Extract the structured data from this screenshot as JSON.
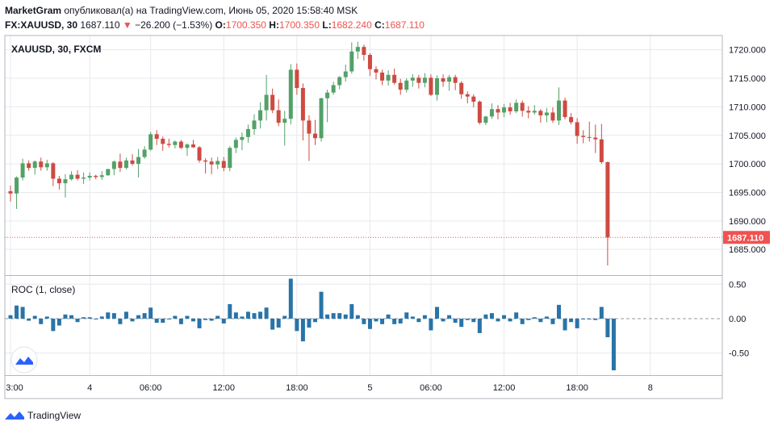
{
  "header": {
    "author": "MarketGram",
    "published_text": "опубликовал(а) на TradingView.com, Июнь 05, 2020 15:58:40 MSK",
    "symbol": "FX:XAUUSD, 30",
    "last": "1687.110",
    "arrow": "▼",
    "change": "−26.200 (−1.53%)",
    "o_label": "O:",
    "o_value": "1700.350",
    "h_label": "H:",
    "h_value": "1700.350",
    "l_label": "L:",
    "l_value": "1682.240",
    "c_label": "C:",
    "c_value": "1687.110"
  },
  "price_pane_label": "XAUUSD, 30, FXCM",
  "roc_pane_label": "ROC (1, close)",
  "last_price_label": "1687.110",
  "footer": {
    "brand": "TradingView"
  },
  "colors": {
    "up": "#53a169",
    "down": "#ce4a41",
    "roc": "#2874a8",
    "last_line": "#ef5350",
    "grid": "#e6e9ee"
  },
  "chart_data": {
    "type": "candlestick",
    "interval_minutes": 30,
    "price_axis": {
      "ticks": [
        1720,
        1715,
        1710,
        1705,
        1700,
        1695,
        1690,
        1685
      ],
      "tick_labels": [
        "1720.000",
        "1715.000",
        "1710.000",
        "1705.000",
        "1700.000",
        "1695.000",
        "1690.000",
        "1685.000"
      ],
      "range": [
        1680.5,
        1722.5
      ]
    },
    "roc_axis": {
      "ticks": [
        0.5,
        0,
        -0.5
      ],
      "tick_labels": [
        "0.50",
        "0.00",
        "-0.50"
      ],
      "range": [
        -0.82,
        0.62
      ]
    },
    "time_axis": {
      "ticks": [
        "3:00",
        "4",
        "06:00",
        "12:00",
        "18:00",
        "5",
        "06:00",
        "12:00",
        "18:00",
        "8"
      ],
      "tick_index": [
        0,
        13,
        23,
        35,
        47,
        59,
        69,
        81,
        93,
        105
      ]
    },
    "last_price": 1687.11,
    "candles": [
      [
        1695.2,
        1696.2,
        1693.4,
        1694.8
      ],
      [
        1694.8,
        1697.8,
        1692.1,
        1697.6
      ],
      [
        1697.6,
        1700.9,
        1697.1,
        1700.1
      ],
      [
        1700.1,
        1700.6,
        1698.8,
        1699.3
      ],
      [
        1699.3,
        1700.6,
        1698.1,
        1700.4
      ],
      [
        1700.4,
        1701.1,
        1698.8,
        1699.4
      ],
      [
        1699.4,
        1700.7,
        1698.8,
        1700.1
      ],
      [
        1700.1,
        1700.3,
        1696.1,
        1697.4
      ],
      [
        1697.4,
        1697.9,
        1695.5,
        1696.6
      ],
      [
        1696.6,
        1698.2,
        1694.1,
        1697.3
      ],
      [
        1697.3,
        1698.7,
        1697.1,
        1698.1
      ],
      [
        1698.1,
        1698.9,
        1697.1,
        1697.4
      ],
      [
        1697.4,
        1698.5,
        1696.5,
        1697.6
      ],
      [
        1697.6,
        1698.5,
        1697.1,
        1697.9
      ],
      [
        1697.9,
        1698.1,
        1697.3,
        1697.7
      ],
      [
        1697.7,
        1698.7,
        1697.2,
        1698.0
      ],
      [
        1698.0,
        1699.1,
        1697.9,
        1699.1
      ],
      [
        1699.1,
        1700.6,
        1698.0,
        1700.4
      ],
      [
        1700.4,
        1701.8,
        1698.6,
        1699.3
      ],
      [
        1699.3,
        1701.1,
        1699.0,
        1700.6
      ],
      [
        1700.6,
        1701.7,
        1699.7,
        1700.0
      ],
      [
        1700.0,
        1702.6,
        1697.6,
        1701.2
      ],
      [
        1701.2,
        1703.1,
        1700.9,
        1702.5
      ],
      [
        1702.5,
        1705.6,
        1702.3,
        1705.2
      ],
      [
        1705.2,
        1705.9,
        1703.3,
        1704.4
      ],
      [
        1704.4,
        1704.8,
        1702.3,
        1703.5
      ],
      [
        1703.5,
        1704.4,
        1702.9,
        1703.3
      ],
      [
        1703.3,
        1704.1,
        1702.7,
        1703.9
      ],
      [
        1703.9,
        1704.2,
        1702.6,
        1702.8
      ],
      [
        1702.8,
        1703.6,
        1701.4,
        1703.4
      ],
      [
        1703.4,
        1704.2,
        1702.8,
        1702.9
      ],
      [
        1702.9,
        1703.1,
        1700.2,
        1700.6
      ],
      [
        1700.6,
        1701.0,
        1698.3,
        1700.4
      ],
      [
        1700.4,
        1701.1,
        1698.2,
        1699.9
      ],
      [
        1699.9,
        1701.2,
        1699.1,
        1700.5
      ],
      [
        1700.5,
        1701.2,
        1698.7,
        1699.3
      ],
      [
        1699.3,
        1703.1,
        1698.7,
        1702.8
      ],
      [
        1702.8,
        1704.6,
        1701.9,
        1704.2
      ],
      [
        1704.2,
        1705.5,
        1702.4,
        1704.7
      ],
      [
        1704.7,
        1706.9,
        1703.7,
        1706.1
      ],
      [
        1706.1,
        1708.7,
        1705.1,
        1707.6
      ],
      [
        1707.6,
        1710.8,
        1706.2,
        1709.4
      ],
      [
        1709.4,
        1715.6,
        1707.6,
        1712.1
      ],
      [
        1712.1,
        1713.2,
        1708.9,
        1709.4
      ],
      [
        1709.4,
        1711.3,
        1706.6,
        1707.2
      ],
      [
        1707.2,
        1709.3,
        1703.2,
        1707.9
      ],
      [
        1707.9,
        1717.5,
        1706.9,
        1716.5
      ],
      [
        1716.5,
        1717.6,
        1712.1,
        1713.3
      ],
      [
        1713.3,
        1714.1,
        1704.1,
        1707.6
      ],
      [
        1707.6,
        1708.5,
        1700.5,
        1705.3
      ],
      [
        1705.3,
        1707.7,
        1703.3,
        1704.5
      ],
      [
        1704.5,
        1711.6,
        1703.9,
        1711.5
      ],
      [
        1711.5,
        1713.0,
        1707.3,
        1712.5
      ],
      [
        1712.5,
        1714.4,
        1712.1,
        1713.8
      ],
      [
        1713.8,
        1715.4,
        1713.1,
        1715.2
      ],
      [
        1715.2,
        1717.4,
        1714.4,
        1716.2
      ],
      [
        1716.2,
        1721.3,
        1715.8,
        1719.7
      ],
      [
        1719.7,
        1721.4,
        1718.4,
        1720.5
      ],
      [
        1720.5,
        1720.9,
        1718.1,
        1719.1
      ],
      [
        1719.1,
        1719.4,
        1715.4,
        1716.6
      ],
      [
        1716.6,
        1717.1,
        1714.8,
        1716.0
      ],
      [
        1716.0,
        1716.5,
        1713.8,
        1714.6
      ],
      [
        1714.6,
        1716.4,
        1713.7,
        1715.6
      ],
      [
        1715.6,
        1716.7,
        1713.9,
        1714.2
      ],
      [
        1714.2,
        1714.9,
        1712.1,
        1713.0
      ],
      [
        1713.0,
        1715.0,
        1712.5,
        1714.6
      ],
      [
        1714.6,
        1715.7,
        1713.5,
        1715.1
      ],
      [
        1715.1,
        1715.6,
        1713.2,
        1714.2
      ],
      [
        1714.2,
        1715.9,
        1713.4,
        1715.1
      ],
      [
        1715.1,
        1715.7,
        1711.9,
        1712.1
      ],
      [
        1712.1,
        1715.5,
        1711.1,
        1715.0
      ],
      [
        1715.0,
        1715.7,
        1713.5,
        1714.4
      ],
      [
        1714.4,
        1715.6,
        1712.8,
        1715.2
      ],
      [
        1715.2,
        1715.6,
        1712.9,
        1714.2
      ],
      [
        1714.2,
        1714.5,
        1711.4,
        1712.2
      ],
      [
        1712.2,
        1712.7,
        1710.6,
        1711.8
      ],
      [
        1711.8,
        1712.2,
        1709.9,
        1710.9
      ],
      [
        1710.9,
        1711.1,
        1706.9,
        1707.2
      ],
      [
        1707.2,
        1708.4,
        1706.8,
        1708.3
      ],
      [
        1708.3,
        1710.6,
        1707.9,
        1709.6
      ],
      [
        1709.6,
        1710.3,
        1707.8,
        1709.0
      ],
      [
        1709.0,
        1710.5,
        1708.2,
        1709.9
      ],
      [
        1709.9,
        1710.7,
        1708.6,
        1709.2
      ],
      [
        1709.2,
        1711.3,
        1708.9,
        1710.7
      ],
      [
        1710.7,
        1711.1,
        1708.3,
        1709.3
      ],
      [
        1709.3,
        1710.1,
        1708.0,
        1709.0
      ],
      [
        1709.0,
        1710.3,
        1708.6,
        1709.3
      ],
      [
        1709.3,
        1709.6,
        1707.2,
        1708.5
      ],
      [
        1708.5,
        1709.8,
        1707.3,
        1709.0
      ],
      [
        1709.0,
        1709.9,
        1707.2,
        1707.6
      ],
      [
        1707.6,
        1713.4,
        1706.8,
        1711.1
      ],
      [
        1711.1,
        1711.6,
        1707.8,
        1708.2
      ],
      [
        1708.2,
        1708.9,
        1706.9,
        1707.3
      ],
      [
        1707.3,
        1708.0,
        1703.5,
        1704.9
      ],
      [
        1704.9,
        1705.9,
        1703.6,
        1704.7
      ],
      [
        1704.7,
        1707.4,
        1703.9,
        1704.6
      ],
      [
        1704.6,
        1706.9,
        1701.9,
        1704.3
      ],
      [
        1704.3,
        1707.0,
        1700.0,
        1700.3
      ],
      [
        1700.3,
        1700.4,
        1682.2,
        1687.1
      ]
    ],
    "roc_values": [
      0.05,
      0.19,
      0.17,
      -0.03,
      0.04,
      -0.08,
      0.03,
      -0.18,
      -0.1,
      0.06,
      0.05,
      -0.05,
      0.02,
      0.02,
      -0.01,
      0.03,
      0.09,
      0.08,
      -0.08,
      0.1,
      -0.04,
      0.05,
      0.08,
      0.16,
      -0.06,
      -0.06,
      -0.01,
      0.04,
      -0.08,
      0.04,
      -0.04,
      -0.14,
      -0.02,
      -0.03,
      0.04,
      -0.07,
      0.21,
      0.09,
      0.03,
      0.1,
      0.08,
      0.1,
      0.16,
      -0.16,
      -0.13,
      0.04,
      0.58,
      -0.18,
      -0.33,
      -0.13,
      -0.05,
      0.39,
      0.06,
      0.08,
      0.08,
      0.06,
      0.21,
      0.05,
      -0.08,
      -0.15,
      -0.04,
      -0.08,
      0.06,
      -0.08,
      -0.07,
      0.09,
      0.03,
      -0.05,
      0.05,
      -0.17,
      0.17,
      -0.04,
      0.05,
      -0.06,
      -0.12,
      -0.02,
      -0.05,
      -0.21,
      0.06,
      0.08,
      -0.04,
      0.05,
      -0.04,
      0.09,
      -0.08,
      -0.02,
      0.02,
      -0.05,
      0.03,
      -0.08,
      0.2,
      -0.17,
      -0.05,
      -0.14,
      -0.01,
      -0.01,
      -0.02,
      0.17,
      -0.27,
      -0.75
    ]
  }
}
